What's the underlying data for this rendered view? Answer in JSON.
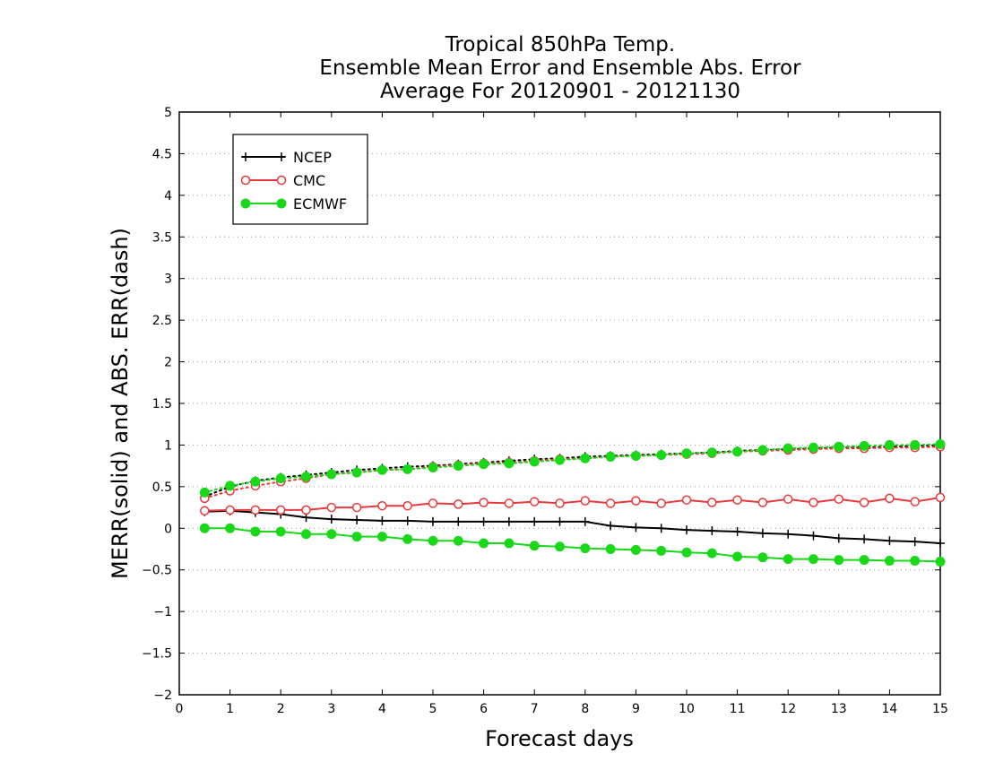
{
  "chart_data": {
    "type": "line",
    "title": [
      "Tropical 850hPa Temp.",
      "Ensemble Mean Error and Ensemble Abs. Error",
      "Average For 20120901 - 20121130"
    ],
    "xlabel": "Forecast days",
    "ylabel": "MERR(solid) and ABS. ERR(dash)",
    "xlim": [
      0,
      15
    ],
    "ylim": [
      -2,
      5
    ],
    "xticks": [
      0,
      1,
      2,
      3,
      4,
      5,
      6,
      7,
      8,
      9,
      10,
      11,
      12,
      13,
      14,
      15
    ],
    "xtick_labels": [
      "0",
      "1",
      "2",
      "3",
      "4",
      "5",
      "6",
      "7",
      "8",
      "9",
      "10",
      "11",
      "12",
      "13",
      "14",
      "15"
    ],
    "yticks": [
      -2,
      -1.5,
      -1,
      -0.5,
      0,
      0.5,
      1,
      1.5,
      2,
      2.5,
      3,
      3.5,
      4,
      4.5,
      5
    ],
    "ytick_labels": [
      "-2",
      "-1.5",
      "-1",
      "-0.5",
      "0",
      "0.5",
      "1",
      "1.5",
      "2",
      "2.5",
      "3",
      "3.5",
      "4",
      "4.5",
      "5"
    ],
    "grid": "horizontal dotted",
    "legend_position": "top-left",
    "x": [
      0.5,
      1,
      1.5,
      2,
      2.5,
      3,
      3.5,
      4,
      4.5,
      5,
      5.5,
      6,
      6.5,
      7,
      7.5,
      8,
      8.5,
      9,
      9.5,
      10,
      10.5,
      11,
      11.5,
      12,
      12.5,
      13,
      13.5,
      14,
      14.5,
      15
    ],
    "series": [
      {
        "name": "NCEP",
        "color": "#000000",
        "marker": "plus",
        "merr": [
          0.2,
          0.21,
          0.19,
          0.17,
          0.13,
          0.11,
          0.1,
          0.09,
          0.09,
          0.08,
          0.08,
          0.08,
          0.08,
          0.08,
          0.08,
          0.08,
          0.03,
          0.01,
          0.0,
          -0.02,
          -0.03,
          -0.04,
          -0.06,
          -0.07,
          -0.09,
          -0.12,
          -0.13,
          -0.15,
          -0.16,
          -0.18
        ],
        "abserr": [
          0.38,
          0.5,
          0.57,
          0.61,
          0.64,
          0.67,
          0.7,
          0.72,
          0.74,
          0.75,
          0.77,
          0.79,
          0.81,
          0.83,
          0.84,
          0.86,
          0.87,
          0.88,
          0.89,
          0.9,
          0.91,
          0.93,
          0.94,
          0.95,
          0.96,
          0.97,
          0.97,
          0.98,
          0.99,
          1.0
        ]
      },
      {
        "name": "CMC",
        "color": "#e8383c",
        "marker": "open-circle",
        "merr": [
          0.21,
          0.22,
          0.22,
          0.22,
          0.22,
          0.25,
          0.25,
          0.27,
          0.27,
          0.3,
          0.29,
          0.31,
          0.3,
          0.32,
          0.3,
          0.33,
          0.3,
          0.33,
          0.3,
          0.34,
          0.31,
          0.34,
          0.31,
          0.35,
          0.31,
          0.35,
          0.31,
          0.36,
          0.32,
          0.37
        ],
        "abserr": [
          0.36,
          0.45,
          0.51,
          0.56,
          0.6,
          0.65,
          0.67,
          0.7,
          0.71,
          0.74,
          0.76,
          0.78,
          0.79,
          0.81,
          0.83,
          0.84,
          0.86,
          0.87,
          0.88,
          0.89,
          0.9,
          0.92,
          0.93,
          0.94,
          0.95,
          0.96,
          0.96,
          0.97,
          0.97,
          0.98
        ]
      },
      {
        "name": "ECMWF",
        "color": "#18d818",
        "marker": "filled-circle",
        "merr": [
          0.0,
          0.0,
          -0.04,
          -0.04,
          -0.07,
          -0.07,
          -0.1,
          -0.1,
          -0.13,
          -0.15,
          -0.15,
          -0.18,
          -0.18,
          -0.21,
          -0.22,
          -0.24,
          -0.25,
          -0.26,
          -0.27,
          -0.29,
          -0.3,
          -0.34,
          -0.35,
          -0.37,
          -0.37,
          -0.38,
          -0.38,
          -0.39,
          -0.39,
          -0.4
        ],
        "abserr": [
          0.43,
          0.51,
          0.56,
          0.6,
          0.62,
          0.65,
          0.67,
          0.7,
          0.71,
          0.73,
          0.75,
          0.77,
          0.78,
          0.8,
          0.82,
          0.84,
          0.86,
          0.87,
          0.88,
          0.9,
          0.91,
          0.92,
          0.94,
          0.96,
          0.97,
          0.98,
          0.99,
          1.0,
          1.0,
          1.01
        ]
      }
    ]
  }
}
